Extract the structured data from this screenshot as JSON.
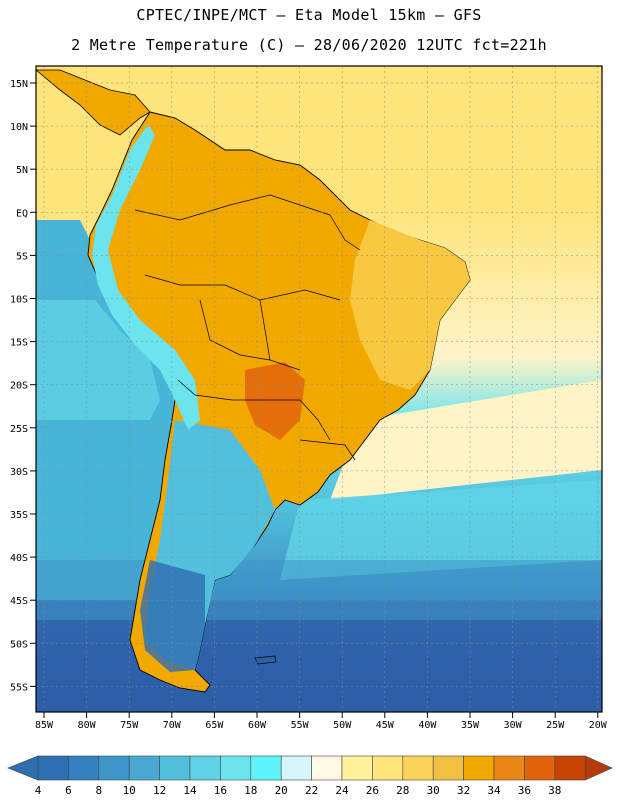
{
  "header": {
    "line1": "CPTEC/INPE/MCT –  Eta Model 15km – GFS",
    "line2": "2 Metre Temperature (C) – 28/06/2020 12UTC fct=221h"
  },
  "axes": {
    "lat_labels": [
      "15N",
      "10N",
      "5N",
      "EQ",
      "5S",
      "10S",
      "15S",
      "20S",
      "25S",
      "30S",
      "35S",
      "40S",
      "45S",
      "50S",
      "55S"
    ],
    "lon_labels": [
      "85W",
      "80W",
      "75W",
      "70W",
      "65W",
      "60W",
      "55W",
      "50W",
      "45W",
      "40W",
      "35W",
      "30W",
      "25W",
      "20W"
    ]
  },
  "legend": {
    "labels": [
      "4",
      "6",
      "8",
      "10",
      "12",
      "14",
      "16",
      "18",
      "20",
      "22",
      "24",
      "26",
      "28",
      "30",
      "32",
      "34",
      "36",
      "38"
    ],
    "colors": [
      "#2e6eb2",
      "#3580bf",
      "#3e96c8",
      "#48aad3",
      "#52c0dc",
      "#5fd3e6",
      "#6be4ee",
      "#5ff3fb",
      "#d6f6fc",
      "#fff9e6",
      "#fff39a",
      "#fde57c",
      "#f8d35a",
      "#f1c040",
      "#f1a900",
      "#ea8716",
      "#e2640a",
      "#c84200",
      "#b83a0c"
    ]
  },
  "colors": {
    "ocean_cold": "#2f5fa8",
    "ocean_cool": "#48b4d8",
    "ocean_warm": "#fde57c",
    "land_hot": "#f1a900",
    "land_warm": "#f8c840",
    "andes": "#6be4ee",
    "border_line": "#000000",
    "grid_line": "#8a8a8a"
  }
}
